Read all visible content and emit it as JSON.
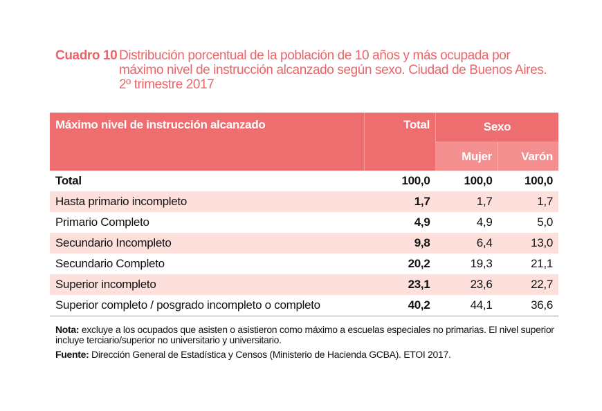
{
  "title": {
    "label": "Cuadro 10",
    "text": "Distribución porcentual de la población de 10 años y más ocupada por máximo nivel de instrucción alcanzado según sexo. Ciudad de Buenos Aires. 2º trimestre 2017"
  },
  "table": {
    "headers": {
      "level": "Máximo nivel de instrucción alcanzado",
      "total": "Total",
      "sexo": "Sexo",
      "mujer": "Mujer",
      "varon": "Varón"
    },
    "rows": [
      {
        "label": "Total",
        "total": "100,0",
        "mujer": "100,0",
        "varon": "100,0"
      },
      {
        "label": "Hasta primario incompleto",
        "total": "1,7",
        "mujer": "1,7",
        "varon": "1,7"
      },
      {
        "label": "Primario Completo",
        "total": "4,9",
        "mujer": "4,9",
        "varon": "5,0"
      },
      {
        "label": "Secundario Incompleto",
        "total": "9,8",
        "mujer": "6,4",
        "varon": "13,0"
      },
      {
        "label": "Secundario Completo",
        "total": "20,2",
        "mujer": "19,3",
        "varon": "21,1"
      },
      {
        "label": "Superior incompleto",
        "total": "23,1",
        "mujer": "23,6",
        "varon": "22,7"
      },
      {
        "label": "Superior completo / posgrado incompleto o completo",
        "total": "40,2",
        "mujer": "44,1",
        "varon": "36,6"
      }
    ]
  },
  "notes": {
    "nota_label": "Nota:",
    "nota": "excluye a los ocupados que asisten o asistieron como máximo a escuelas especiales no primarias. El nivel superior incluye terciario/superior no universitario y universitario.",
    "fuente_label": "Fuente:",
    "fuente": "Dirección General de Estadística y Censos (Ministerio de Hacienda GCBA). ETOI 2017."
  },
  "colors": {
    "accent": "#ee6d6f",
    "subheader": "#f3908f",
    "stripe": "#fde0dc",
    "title": "#e9656a"
  }
}
